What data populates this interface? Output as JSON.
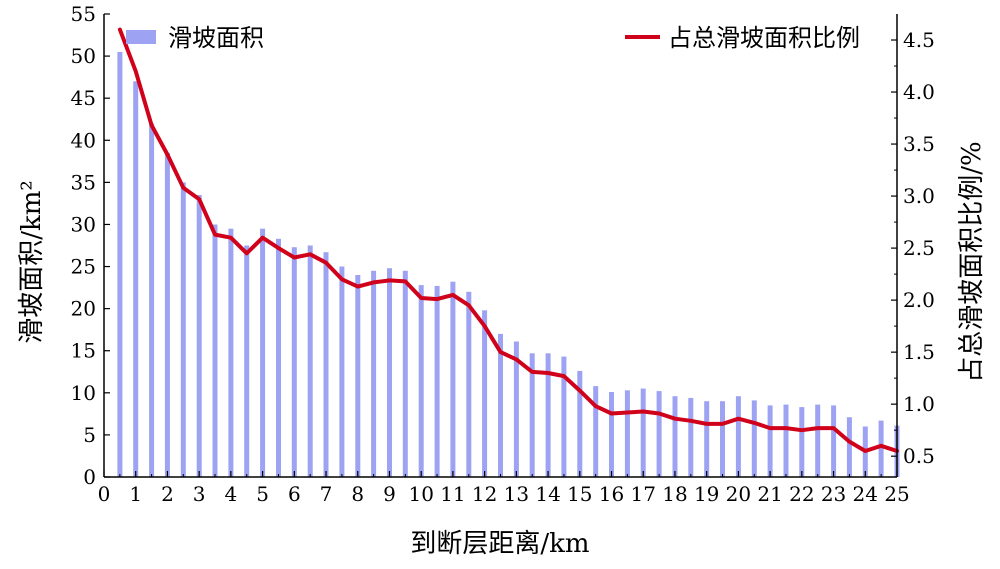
{
  "chart_data": {
    "type": "bar",
    "xlabel": "到断层距离/km",
    "ylabel_left": "滑坡面积/km²",
    "ylabel_right": "占总滑坡面积比例/%",
    "xlim": [
      0,
      25
    ],
    "ylim_left": [
      0,
      55
    ],
    "ylim_right": [
      0.3,
      4.75
    ],
    "x_ticks": [
      "0",
      "1",
      "2",
      "3",
      "4",
      "5",
      "6",
      "7",
      "8",
      "9",
      "10",
      "11",
      "12",
      "13",
      "14",
      "15",
      "16",
      "17",
      "18",
      "19",
      "20",
      "21",
      "22",
      "23",
      "24",
      "25"
    ],
    "y_left_ticks": [
      "0",
      "5",
      "10",
      "15",
      "20",
      "25",
      "30",
      "35",
      "40",
      "45",
      "50",
      "55"
    ],
    "y_right_ticks": [
      "0.5",
      "1.0",
      "1.5",
      "2.0",
      "2.5",
      "3.0",
      "3.5",
      "4.0",
      "4.5"
    ],
    "legend_position": "top",
    "grid": false,
    "x": [
      0.5,
      1,
      1.5,
      2,
      2.5,
      3,
      3.5,
      4,
      4.5,
      5,
      5.5,
      6,
      6.5,
      7,
      7.5,
      8,
      8.5,
      9,
      9.5,
      10,
      10.5,
      11,
      11.5,
      12,
      12.5,
      13,
      13.5,
      14,
      14.5,
      15,
      15.5,
      16,
      16.5,
      17,
      17.5,
      18,
      18.5,
      19,
      19.5,
      20,
      20.5,
      21,
      21.5,
      22,
      22.5,
      23,
      23.5,
      24,
      24.5,
      25
    ],
    "series": [
      {
        "name": "滑坡面积",
        "kind": "bar",
        "axis": "left",
        "color": "#9da3f2",
        "values": [
          50.5,
          47,
          42,
          38.5,
          35,
          33.5,
          30,
          29.5,
          27.5,
          29.5,
          28.3,
          27.3,
          27.5,
          26.7,
          25,
          24,
          24.5,
          24.8,
          24.5,
          22.8,
          22.7,
          23.2,
          22,
          19.8,
          17,
          16.1,
          14.7,
          14.7,
          14.3,
          12.6,
          10.8,
          10.1,
          10.3,
          10.5,
          10.2,
          9.6,
          9.4,
          9,
          9,
          9.6,
          9.1,
          8.5,
          8.6,
          8.3,
          8.6,
          8.5,
          7.1,
          6,
          6.7,
          6.1
        ]
      },
      {
        "name": "占总滑坡面积比例",
        "kind": "line",
        "axis": "right",
        "color": "#d0021b",
        "values": [
          4.6,
          4.2,
          3.68,
          3.4,
          3.08,
          2.97,
          2.63,
          2.6,
          2.45,
          2.6,
          2.5,
          2.41,
          2.44,
          2.36,
          2.2,
          2.13,
          2.17,
          2.19,
          2.18,
          2.02,
          2.01,
          2.05,
          1.95,
          1.75,
          1.5,
          1.43,
          1.31,
          1.3,
          1.27,
          1.13,
          0.98,
          0.91,
          0.92,
          0.93,
          0.91,
          0.86,
          0.84,
          0.81,
          0.81,
          0.86,
          0.82,
          0.77,
          0.77,
          0.75,
          0.77,
          0.77,
          0.64,
          0.55,
          0.6,
          0.55
        ]
      }
    ]
  }
}
